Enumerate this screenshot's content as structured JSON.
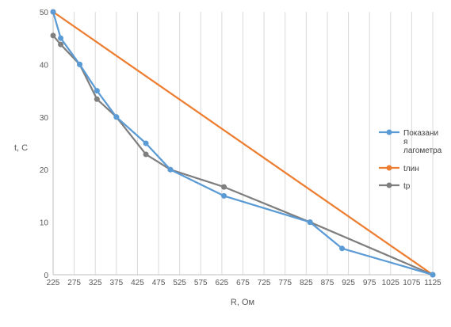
{
  "chart_data": {
    "type": "line",
    "xlabel": "R, Ом",
    "ylabel": "t, С",
    "xlim": [
      225,
      1125
    ],
    "ylim": [
      0,
      50
    ],
    "x_ticks": [
      "225",
      "275",
      "325",
      "375",
      "425",
      "475",
      "525",
      "575",
      "625",
      "675",
      "725",
      "775",
      "825",
      "875",
      "925",
      "975",
      "1025",
      "1075",
      "1125"
    ],
    "y_ticks": [
      "0",
      "10",
      "20",
      "30",
      "40",
      "50"
    ],
    "grid": "vertical",
    "legend_position": "right",
    "series": [
      {
        "name_lines": [
          "Показани",
          "я",
          "лагометра"
        ],
        "color": "#5b9bd5",
        "points": [
          [
            225,
            50
          ],
          [
            243,
            45
          ],
          [
            288,
            40
          ],
          [
            329,
            35
          ],
          [
            375,
            30
          ],
          [
            445,
            25
          ],
          [
            503,
            20
          ],
          [
            630,
            15
          ],
          [
            834,
            10
          ],
          [
            910,
            5
          ],
          [
            1125,
            0
          ]
        ]
      },
      {
        "name": "tлин",
        "color": "#ed7d31",
        "points": [
          [
            225,
            50
          ],
          [
            1125,
            0
          ]
        ]
      },
      {
        "name": "tр",
        "color": "#7f7f7f",
        "points": [
          [
            225,
            45.5
          ],
          [
            243,
            43.8
          ],
          [
            288,
            40
          ],
          [
            329,
            33.4
          ],
          [
            375,
            30
          ],
          [
            445,
            22.9
          ],
          [
            503,
            20
          ],
          [
            630,
            16.7
          ],
          [
            834,
            10
          ],
          [
            1125,
            0
          ]
        ]
      }
    ]
  }
}
